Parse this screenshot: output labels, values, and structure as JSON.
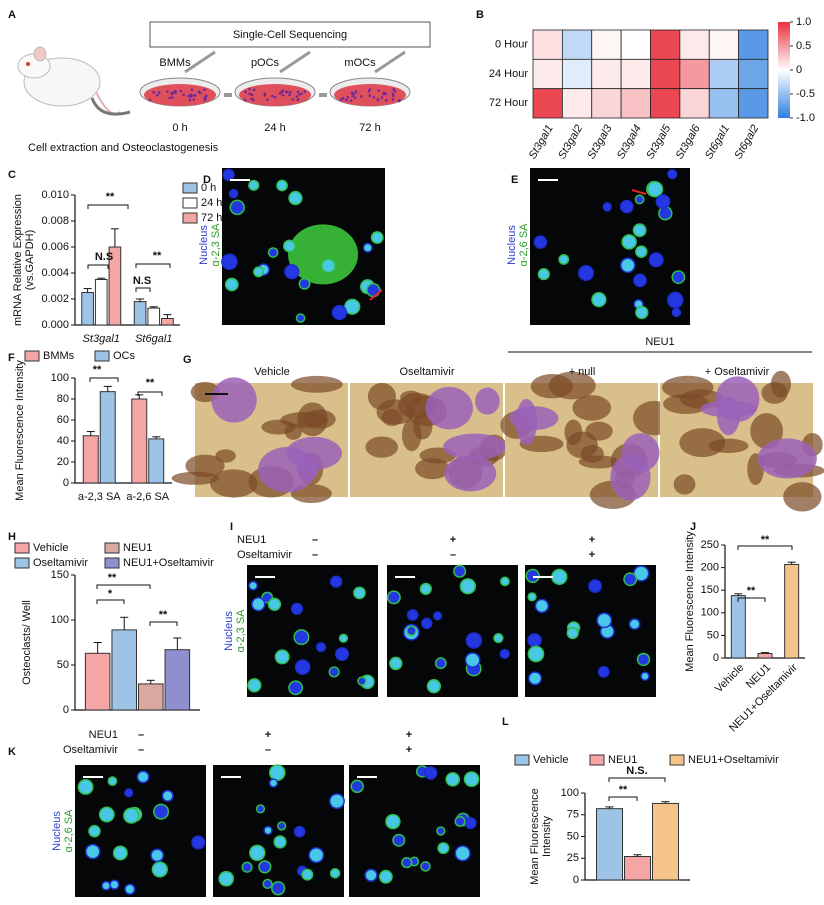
{
  "panel_labels": [
    "A",
    "B",
    "C",
    "D",
    "E",
    "F",
    "G",
    "H",
    "I",
    "J",
    "K",
    "L"
  ],
  "panel_a": {
    "title": "Single-Cell Sequencing",
    "stages": [
      "BMMs",
      "pOCs",
      "mOCs"
    ],
    "times": [
      "0 h",
      "24 h",
      "72 h"
    ],
    "caption": "Cell extraction and Osteoclastogenesis"
  },
  "panel_d": {
    "stain": [
      "Nucleus",
      "α-2,3 SA"
    ]
  },
  "panel_e": {
    "stain": [
      "Nucleus",
      "α-2,6 SA"
    ]
  },
  "panel_g": {
    "columns": [
      "Vehicle",
      "Oseltamivir",
      "+ null",
      "+ Oseltamivir"
    ],
    "group": "NEU1"
  },
  "panel_i": {
    "rows": [
      {
        "label": "NEU1",
        "signs": [
          "–",
          "+",
          "+"
        ]
      },
      {
        "label": "Oseltamivir",
        "signs": [
          "–",
          "–",
          "+"
        ]
      }
    ],
    "stain": [
      "Nucleus",
      "α-2,3 SA"
    ]
  },
  "panel_k": {
    "rows": [
      {
        "label": "NEU1",
        "signs": [
          "–",
          "+",
          "+"
        ]
      },
      {
        "label": "Oseltamivir",
        "signs": [
          "–",
          "–",
          "+"
        ]
      }
    ],
    "stain": [
      "Nucleus",
      "α-2,6 SA"
    ]
  },
  "chart_data": [
    {
      "type": "heatmap",
      "x": [
        "St3gal1",
        "St3gal2",
        "St3gal3",
        "St3gal4",
        "St3gal5",
        "St3gal6",
        "St6gal1",
        "St6gal2"
      ],
      "y": [
        "0 Hour",
        "24 Hour",
        "72 Hour"
      ],
      "values": [
        [
          0.15,
          -0.3,
          0.05,
          0.0,
          0.9,
          0.1,
          0.05,
          -0.8
        ],
        [
          0.1,
          -0.15,
          0.1,
          0.1,
          0.9,
          0.5,
          -0.4,
          -0.7
        ],
        [
          0.9,
          0.1,
          0.2,
          0.3,
          0.9,
          0.2,
          -0.5,
          -0.8
        ]
      ],
      "zlim": [
        -1,
        1
      ],
      "zticks": [
        {
          "value": 1,
          "label": "1.0"
        },
        0.5,
        0,
        -0.5,
        {
          "value": -1,
          "label": "-1.0"
        }
      ],
      "colormap": [
        "#2f7fe0",
        "#ffffff",
        "#e8333f"
      ]
    },
    {
      "type": "bar",
      "ylabel": [
        "mRNA Relative Expression",
        "(vs.GAPDH)"
      ],
      "categories": [
        "St3gal1",
        "St6gal1"
      ],
      "series": [
        {
          "name": "0 h",
          "color": "#9dc3e6",
          "values": [
            0.0025,
            0.0018
          ],
          "errors": [
            0.0003,
            0.0002
          ]
        },
        {
          "name": "24 h",
          "color": "#ffffff",
          "values": [
            0.0035,
            0.0013
          ],
          "errors": [
            0.0001,
            0.0001
          ]
        },
        {
          "name": "72 h",
          "color": "#f4a6a6",
          "values": [
            0.006,
            0.0005
          ],
          "errors": [
            0.0014,
            0.0003
          ]
        }
      ],
      "ylim": [
        0,
        0.01
      ],
      "yticks": [
        {
          "value": 0,
          "label": "0.000"
        },
        0.002,
        0.004,
        0.006,
        0.008,
        {
          "value": 0.01,
          "label": "0.010"
        }
      ],
      "annotations": [
        "**",
        "N.S",
        "**",
        "N.S"
      ]
    },
    {
      "type": "bar",
      "ylabel": [
        "Mean Fluorescence Intensity"
      ],
      "categories": [
        "a-2,3 SA",
        "a-2,6 SA"
      ],
      "series": [
        {
          "name": "BMMs",
          "color": "#f4a6a6",
          "values": [
            45,
            80
          ],
          "errors": [
            4,
            4
          ]
        },
        {
          "name": "OCs",
          "color": "#9dc3e6",
          "values": [
            87,
            42
          ],
          "errors": [
            5,
            2
          ]
        }
      ],
      "ylim": [
        0,
        100
      ],
      "yticks": [
        0,
        20,
        40,
        60,
        80,
        100
      ],
      "annotations": [
        "**",
        "**"
      ]
    },
    {
      "type": "bar",
      "ylabel": [
        "Osteoclasts/ Well"
      ],
      "categories": [
        null
      ],
      "series": [
        {
          "name": "Vehicle",
          "color": "#f4a6a6",
          "values": [
            63
          ],
          "errors": [
            12
          ]
        },
        {
          "name": "Oseltamivir",
          "color": "#9dc3e6",
          "values": [
            89
          ],
          "errors": [
            14
          ]
        },
        {
          "name": "NEU1",
          "color": "#d9a8a0",
          "values": [
            29
          ],
          "errors": [
            4
          ]
        },
        {
          "name": "NEU1+Oseltamivir",
          "color": "#8f8fd0",
          "values": [
            67
          ],
          "errors": [
            13
          ]
        }
      ],
      "ylim": [
        0,
        150
      ],
      "yticks": [
        0,
        50,
        100,
        150
      ],
      "annotations": [
        "*",
        "**",
        "**"
      ]
    },
    {
      "type": "bar",
      "ylabel": [
        "Mean Fluorescence Intensity"
      ],
      "categories": [
        "Vehicle",
        "NEU1",
        "NEU1+Oseltamivir"
      ],
      "values": [
        138,
        10,
        207
      ],
      "errors": [
        4,
        2,
        5
      ],
      "colors": [
        "#9dc3e6",
        "#f4a6a6",
        "#f5c48a"
      ],
      "ylim": [
        0,
        250
      ],
      "yticks": [
        0,
        50,
        100,
        150,
        200,
        250
      ],
      "annotations": [
        "**",
        "**"
      ]
    },
    {
      "type": "bar",
      "ylabel": [
        "Mean Fluorescence",
        "Intensity"
      ],
      "categories": [
        null
      ],
      "series": [
        {
          "name": "Vehicle",
          "color": "#9dc3e6",
          "values": [
            82
          ],
          "errors": [
            2
          ]
        },
        {
          "name": "NEU1",
          "color": "#f4a6a6",
          "values": [
            27
          ],
          "errors": [
            2
          ]
        },
        {
          "name": "NEU1+Oseltamivir",
          "color": "#f5c48a",
          "values": [
            88
          ],
          "errors": [
            2
          ]
        }
      ],
      "ylim": [
        0,
        100
      ],
      "yticks": [
        0,
        25,
        50,
        75,
        100
      ],
      "annotations": [
        "**",
        "N.S."
      ]
    }
  ]
}
